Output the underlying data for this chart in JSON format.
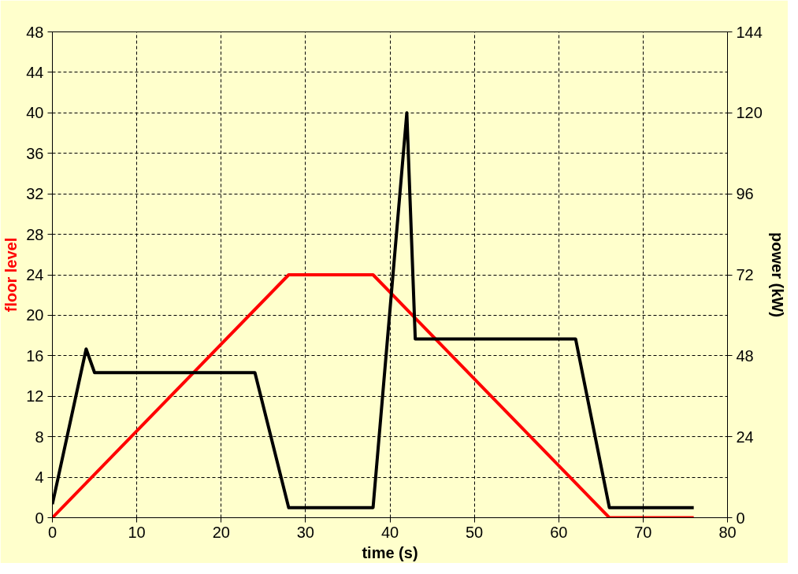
{
  "chart_data": {
    "type": "line",
    "xlabel": "time (s)",
    "ylabel": "floor level",
    "y2label": "power (kW)",
    "xlim": [
      0,
      80
    ],
    "xticks": [
      0,
      10,
      20,
      30,
      40,
      50,
      60,
      70,
      80
    ],
    "ylim": [
      0,
      48
    ],
    "yticks": [
      0,
      4,
      8,
      12,
      16,
      20,
      24,
      28,
      32,
      36,
      40,
      44,
      48
    ],
    "y2lim": [
      0,
      144
    ],
    "y2ticks": [
      0,
      24,
      48,
      72,
      96,
      120,
      144
    ],
    "grid": true,
    "line_style": "solid",
    "marker": "none",
    "series": [
      {
        "color": "#ff0000",
        "x": [
          0,
          28,
          38,
          66,
          76
        ],
        "values": [
          0,
          24,
          24,
          0,
          0
        ]
      },
      {
        "color": "#000000",
        "axis": "y2",
        "x": [
          0,
          4,
          5,
          24,
          28,
          38,
          42,
          43,
          62,
          66,
          76
        ],
        "values": [
          4,
          50,
          43,
          43,
          3,
          3,
          120,
          53,
          53,
          3,
          3
        ]
      }
    ]
  }
}
